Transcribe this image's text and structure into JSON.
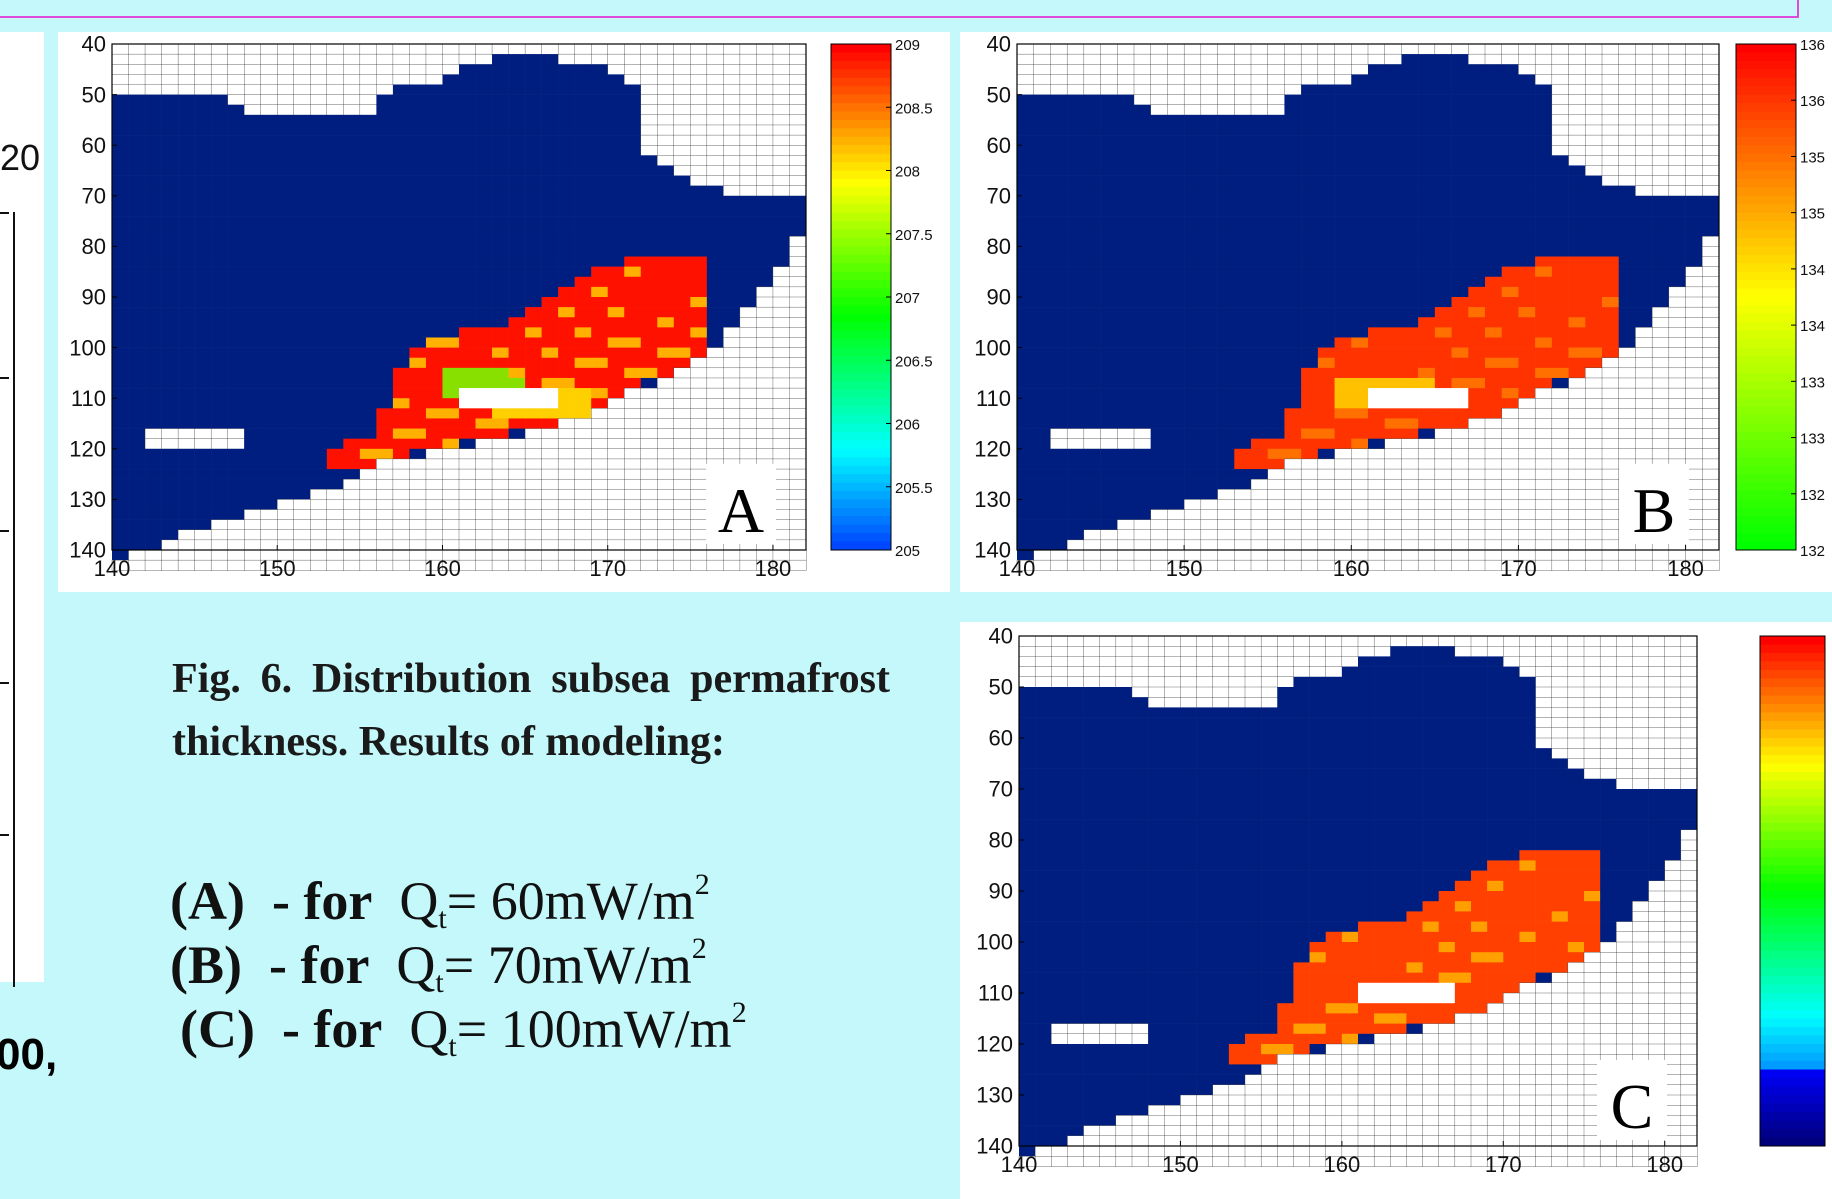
{
  "left_fragment": {
    "tick_text": "20",
    "bottom_text": "00,"
  },
  "caption": "Fig. 6. Distribution subsea permafrost thickness. Results of modeling:",
  "legend": [
    {
      "key": "(A)",
      "dash_for": "- for",
      "q": "Q",
      "sub": "t",
      "value": "= 60mW/m",
      "sup": "2"
    },
    {
      "key": "(B)",
      "dash_for": "- for",
      "q": "Q",
      "sub": "t",
      "value": "= 70mW/m",
      "sup": "2"
    },
    {
      "key": "(C)",
      "dash_for": "- for",
      "q": "Q",
      "sub": "t",
      "value": "= 100mW/m",
      "sup": "2"
    }
  ],
  "colors": {
    "background": "#c4f8fa",
    "sea": "#001e80",
    "land": "#ffffff",
    "frame": "#e04ad8"
  },
  "chart_data": [
    {
      "type": "heatmap",
      "label": "A",
      "xlim": [
        140,
        182
      ],
      "ylim": [
        140,
        40
      ],
      "xticks": [
        140,
        150,
        160,
        170,
        180
      ],
      "yticks": [
        40,
        50,
        60,
        70,
        80,
        90,
        100,
        110,
        120,
        130,
        140
      ],
      "colorbar": {
        "ticks": [
          "209",
          "208.5",
          "208",
          "207.5",
          "207",
          "206.5",
          "206",
          "205.5",
          "205"
        ],
        "min": 205,
        "max": 209
      }
    },
    {
      "type": "heatmap",
      "label": "B",
      "xlim": [
        140,
        182
      ],
      "ylim": [
        140,
        40
      ],
      "xticks": [
        140,
        150,
        160,
        170,
        180
      ],
      "yticks": [
        40,
        50,
        60,
        70,
        80,
        90,
        100,
        110,
        120,
        130,
        140
      ],
      "colorbar": {
        "ticks": [
          "136",
          "136",
          "135",
          "135",
          "134",
          "134",
          "133",
          "133",
          "132",
          "132"
        ],
        "min": 132,
        "max": 136
      }
    },
    {
      "type": "heatmap",
      "label": "C",
      "xlim": [
        140,
        182
      ],
      "ylim": [
        140,
        40
      ],
      "xticks": [
        140,
        150,
        160,
        170,
        180
      ],
      "yticks": [
        40,
        50,
        60,
        70,
        80,
        90,
        100,
        110,
        120,
        130,
        140
      ],
      "colorbar": {
        "ticks": []
      }
    }
  ]
}
